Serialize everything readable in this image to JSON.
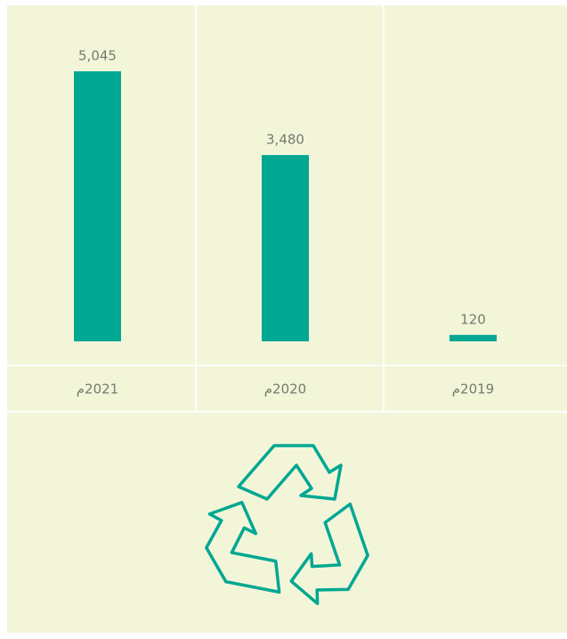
{
  "chart_data": {
    "type": "bar",
    "categories": [
      "2021م",
      "2020م",
      "2019م"
    ],
    "values": [
      5045,
      3480,
      120
    ],
    "value_labels": [
      "5,045",
      "3,480",
      "120"
    ],
    "color": "#00a792"
  }
}
